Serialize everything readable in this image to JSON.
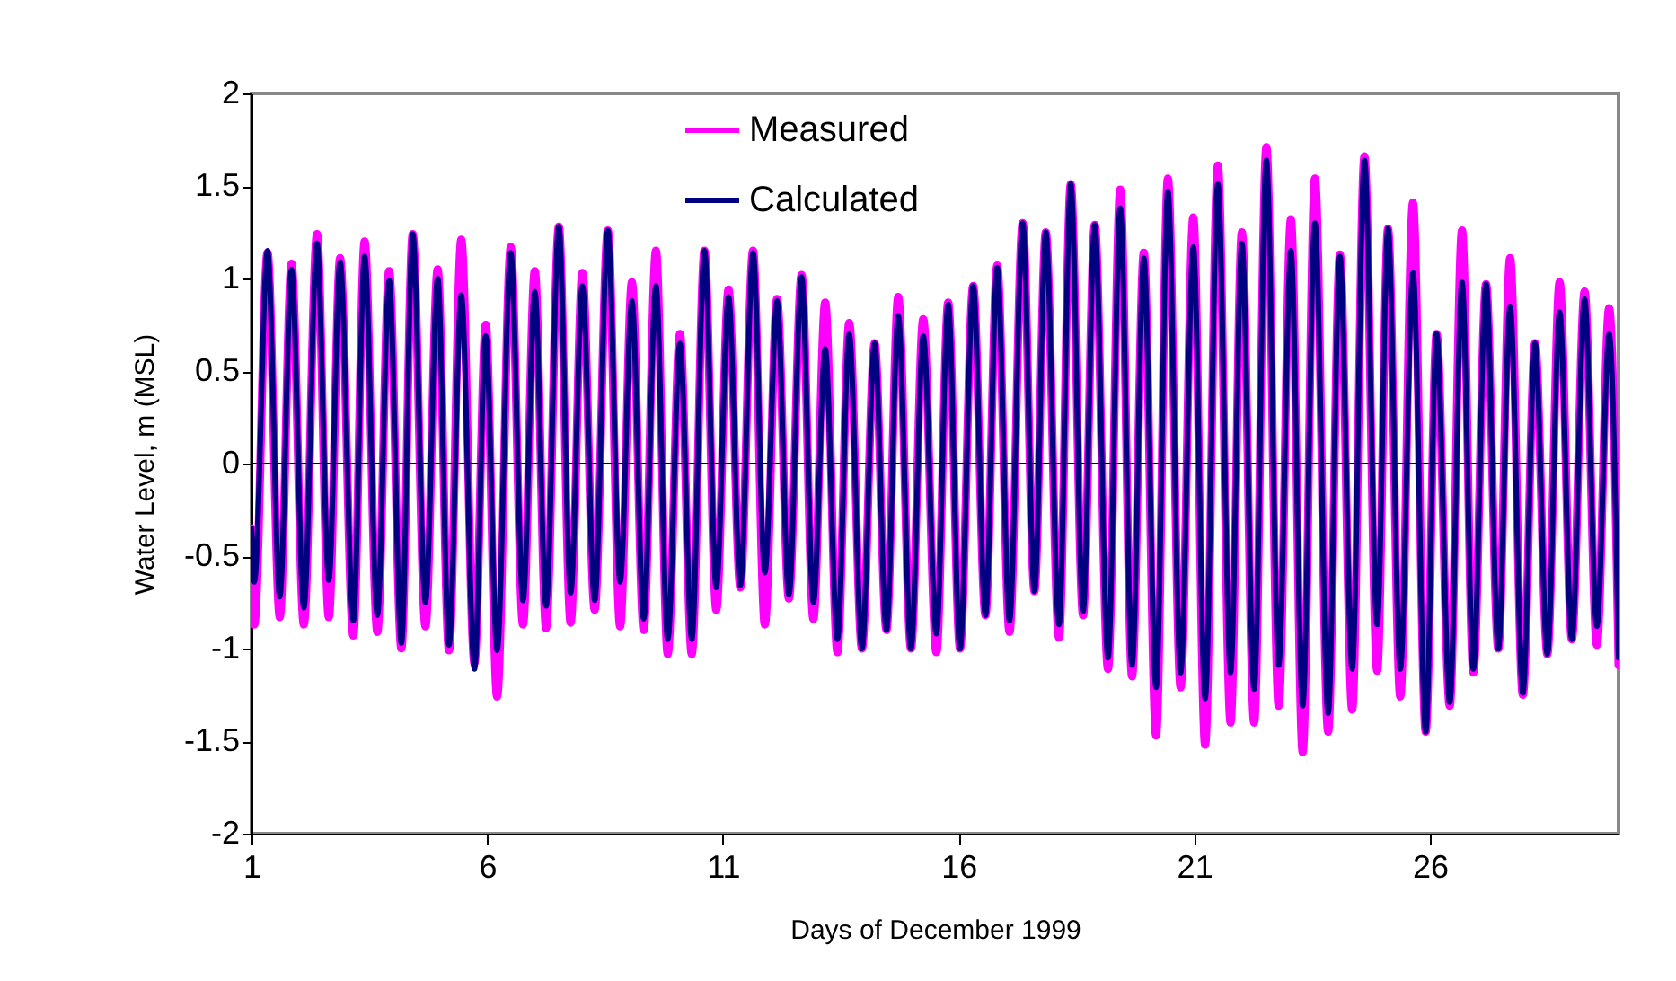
{
  "chart_data": {
    "type": "line",
    "xlabel": "Days of December 1999",
    "ylabel": "Water Level, m (MSL)",
    "xlim": [
      1,
      30
    ],
    "xticks": [
      1,
      6,
      11,
      16,
      21,
      26
    ],
    "ylim": [
      -2,
      2
    ],
    "yticks": [
      -2,
      -1.5,
      -1,
      -0.5,
      0,
      0.5,
      1,
      1.5,
      2
    ],
    "grid": false,
    "legend": "top",
    "ref_lines": [
      {
        "axis": "y",
        "value": 0,
        "color": "#000000"
      }
    ],
    "line_style": "solid",
    "marker": "none",
    "x": [
      1.0,
      1.06,
      1.34,
      1.6,
      1.85,
      2.11,
      2.39,
      2.64,
      2.88,
      3.16,
      3.4,
      3.67,
      3.92,
      4.18,
      4.42,
      4.69,
      4.95,
      5.19,
      5.45,
      5.73,
      5.97,
      6.21,
      6.5,
      6.76,
      7.01,
      7.25,
      7.52,
      7.77,
      8.02,
      8.28,
      8.56,
      8.82,
      9.07,
      9.32,
      9.58,
      9.83,
      10.09,
      10.34,
      10.61,
      10.86,
      11.12,
      11.37,
      11.64,
      11.89,
      12.15,
      12.4,
      12.67,
      12.92,
      13.17,
      13.43,
      13.68,
      13.95,
      14.22,
      14.47,
      14.72,
      14.99,
      15.25,
      15.53,
      15.78,
      16.03,
      16.31,
      16.57,
      16.82,
      17.08,
      17.36,
      17.61,
      17.85,
      18.13,
      18.38,
      18.64,
      18.89,
      19.17,
      19.43,
      19.68,
      19.93,
      20.19,
      20.44,
      20.71,
      20.98,
      21.23,
      21.5,
      21.77,
      22.01,
      22.27,
      22.53,
      22.79,
      23.05,
      23.3,
      23.56,
      23.84,
      24.09,
      24.35,
      24.61,
      24.88,
      25.11,
      25.37,
      25.64,
      25.91,
      26.14,
      26.42,
      26.68,
      26.92,
      27.19,
      27.45,
      27.7,
      27.97,
      28.23,
      28.49,
      28.75,
      29.01,
      29.28,
      29.54,
      29.8,
      30.0
    ],
    "series": [
      {
        "name": "Measured",
        "color": "#ff00ff",
        "values": [
          -0.35,
          -0.87,
          1.14,
          -0.83,
          1.08,
          -0.87,
          1.24,
          -0.83,
          1.11,
          -0.93,
          1.2,
          -0.91,
          1.04,
          -1.0,
          1.24,
          -0.88,
          1.05,
          -1.01,
          1.21,
          -1.08,
          0.75,
          -1.26,
          1.17,
          -0.87,
          1.04,
          -0.89,
          1.28,
          -0.86,
          1.03,
          -0.79,
          1.26,
          -0.88,
          0.98,
          -0.9,
          1.15,
          -1.03,
          0.7,
          -1.03,
          1.15,
          -0.79,
          0.94,
          -0.67,
          1.15,
          -0.87,
          0.89,
          -0.73,
          1.02,
          -0.84,
          0.87,
          -1.02,
          0.76,
          -1.0,
          0.65,
          -0.9,
          0.9,
          -1.0,
          0.78,
          -1.02,
          0.87,
          -1.0,
          0.96,
          -0.82,
          1.07,
          -0.91,
          1.3,
          -0.69,
          1.25,
          -0.94,
          1.51,
          -0.82,
          1.29,
          -1.11,
          1.48,
          -1.15,
          1.14,
          -1.47,
          1.54,
          -1.21,
          1.33,
          -1.52,
          1.61,
          -1.4,
          1.25,
          -1.4,
          1.71,
          -1.31,
          1.32,
          -1.56,
          1.54,
          -1.45,
          1.13,
          -1.33,
          1.66,
          -1.12,
          1.27,
          -1.26,
          1.41,
          -1.45,
          0.7,
          -1.31,
          1.26,
          -1.13,
          0.97,
          -1.0,
          1.11,
          -1.25,
          0.65,
          -1.03,
          0.98,
          -0.95,
          0.93,
          -0.98,
          0.84,
          -1.09
        ]
      },
      {
        "name": "Calculated",
        "color": "#000080",
        "values": [
          -0.35,
          -0.64,
          1.15,
          -0.72,
          1.05,
          -0.78,
          1.19,
          -0.63,
          1.09,
          -0.85,
          1.12,
          -0.82,
          0.99,
          -0.97,
          1.24,
          -0.75,
          1.0,
          -0.98,
          0.91,
          -1.11,
          0.69,
          -1.01,
          1.14,
          -0.74,
          0.93,
          -0.77,
          1.28,
          -0.7,
          0.96,
          -0.74,
          1.26,
          -0.64,
          0.88,
          -0.84,
          0.96,
          -0.95,
          0.65,
          -0.95,
          1.15,
          -0.67,
          0.9,
          -0.66,
          1.14,
          -0.59,
          0.88,
          -0.71,
          1.01,
          -0.75,
          0.62,
          -0.95,
          0.7,
          -1.0,
          0.65,
          -0.9,
          0.8,
          -1.0,
          0.69,
          -0.92,
          0.86,
          -1.0,
          0.96,
          -0.82,
          1.06,
          -0.85,
          1.3,
          -0.69,
          1.25,
          -0.87,
          1.51,
          -0.8,
          1.29,
          -1.05,
          1.38,
          -1.09,
          1.11,
          -1.21,
          1.47,
          -1.13,
          1.17,
          -1.27,
          1.51,
          -1.13,
          1.19,
          -1.22,
          1.64,
          -1.09,
          1.15,
          -1.31,
          1.3,
          -1.35,
          1.12,
          -1.11,
          1.64,
          -0.87,
          1.27,
          -1.11,
          1.03,
          -1.45,
          0.7,
          -1.29,
          0.98,
          -1.11,
          0.97,
          -1.0,
          0.85,
          -1.24,
          0.65,
          -1.03,
          0.82,
          -0.95,
          0.89,
          -0.88,
          0.7,
          -1.05
        ]
      }
    ]
  }
}
